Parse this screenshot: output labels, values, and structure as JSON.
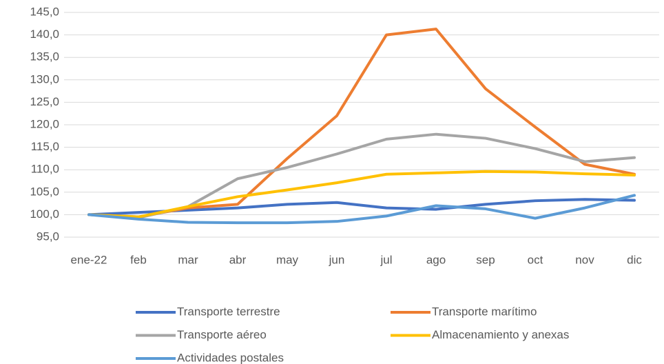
{
  "chart_data": {
    "type": "line",
    "categories": [
      "ene-22",
      "feb",
      "mar",
      "abr",
      "may",
      "jun",
      "jul",
      "ago",
      "sep",
      "oct",
      "nov",
      "dic"
    ],
    "series": [
      {
        "name": "Transporte terrestre",
        "color": "#4472c4",
        "values": [
          100,
          100.5,
          101,
          101.5,
          102.3,
          102.7,
          101.5,
          101.2,
          102.3,
          103.1,
          103.4,
          103.2
        ]
      },
      {
        "name": "Transporte marítimo",
        "color": "#ed7d31",
        "values": [
          100,
          99.5,
          101.5,
          102.3,
          112.5,
          122,
          140,
          141.3,
          128,
          119.5,
          111.2,
          109
        ]
      },
      {
        "name": "Transporte aéreo",
        "color": "#a5a5a5",
        "values": [
          100,
          99.3,
          101.8,
          108,
          110.5,
          113.5,
          116.8,
          117.9,
          117,
          114.7,
          111.8,
          112.7
        ]
      },
      {
        "name": "Almacenamiento y anexas",
        "color": "#ffc000",
        "values": [
          100,
          99.5,
          101.8,
          104,
          105.5,
          107.1,
          109,
          109.3,
          109.6,
          109.5,
          109.1,
          108.8
        ]
      },
      {
        "name": "Actividades postales",
        "color": "#5b9bd5",
        "values": [
          100,
          99,
          98.3,
          98.2,
          98.2,
          98.5,
          99.7,
          102,
          101.3,
          99.2,
          101.5,
          104.3
        ]
      }
    ],
    "ylim": [
      95,
      145
    ],
    "yticks": [
      {
        "value": 95,
        "label": "95,0"
      },
      {
        "value": 100,
        "label": "100,0"
      },
      {
        "value": 105,
        "label": "105,0"
      },
      {
        "value": 110,
        "label": "110,0"
      },
      {
        "value": 115,
        "label": "115,0"
      },
      {
        "value": 120,
        "label": "120,0"
      },
      {
        "value": 125,
        "label": "125,0"
      },
      {
        "value": 130,
        "label": "130,0"
      },
      {
        "value": 135,
        "label": "135,0"
      },
      {
        "value": 140,
        "label": "140,0"
      },
      {
        "value": 145,
        "label": "145,0"
      }
    ],
    "grid": true,
    "legend": "bottom"
  }
}
